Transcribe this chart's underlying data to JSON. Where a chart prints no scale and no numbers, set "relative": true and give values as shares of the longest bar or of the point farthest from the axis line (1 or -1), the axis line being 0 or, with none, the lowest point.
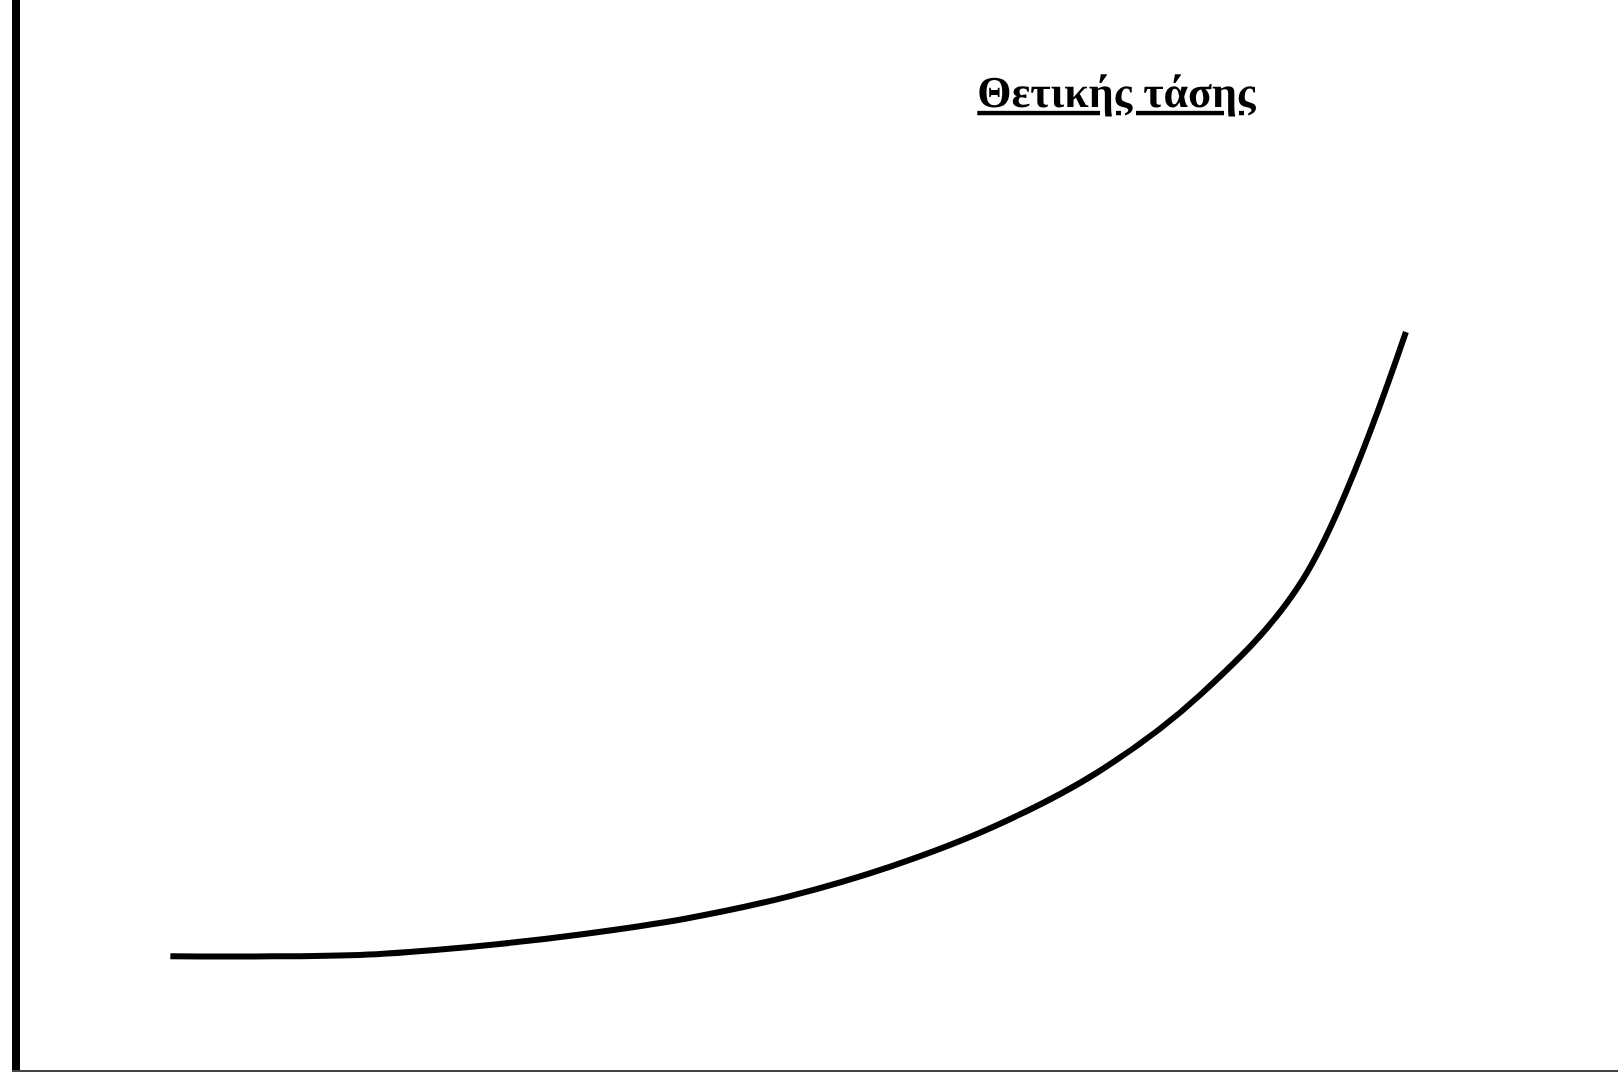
{
  "chart_data": {
    "type": "line",
    "title": "Θετικής τάσης",
    "relative": true,
    "categories": [
      null,
      null,
      null,
      null,
      null,
      null,
      null,
      null,
      null,
      null,
      null,
      null,
      null
    ],
    "series": [
      {
        "color": "#000000",
        "values": [
          0.154,
          0.154,
          0.157,
          0.168,
          0.184,
          0.205,
          0.235,
          0.276,
          0.33,
          0.403,
          0.508,
          0.665,
          1
        ]
      }
    ],
    "marker": "none",
    "line_style": "solid",
    "grid": false
  }
}
